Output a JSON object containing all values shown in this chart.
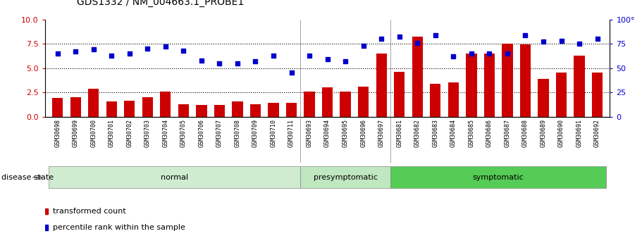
{
  "title": "GDS1332 / NM_004663.1_PROBE1",
  "samples": [
    "GSM30698",
    "GSM30699",
    "GSM30700",
    "GSM30701",
    "GSM30702",
    "GSM30703",
    "GSM30704",
    "GSM30705",
    "GSM30706",
    "GSM30707",
    "GSM30708",
    "GSM30709",
    "GSM30710",
    "GSM30711",
    "GSM30693",
    "GSM30694",
    "GSM30695",
    "GSM30696",
    "GSM30697",
    "GSM30681",
    "GSM30682",
    "GSM30683",
    "GSM30684",
    "GSM30685",
    "GSM30686",
    "GSM30687",
    "GSM30688",
    "GSM30689",
    "GSM30690",
    "GSM30691",
    "GSM30692"
  ],
  "bar_values": [
    1.9,
    2.0,
    2.9,
    1.6,
    1.65,
    2.0,
    2.55,
    1.3,
    1.2,
    1.2,
    1.6,
    1.3,
    1.4,
    1.4,
    2.55,
    3.0,
    2.55,
    3.1,
    6.5,
    4.6,
    8.2,
    3.4,
    3.5,
    6.5,
    6.5,
    7.5,
    7.4,
    3.9,
    4.5,
    6.3,
    4.5
  ],
  "dot_values": [
    65,
    67,
    69,
    63,
    65,
    70,
    72,
    68,
    58,
    55,
    55,
    57,
    63,
    45,
    63,
    59,
    57,
    73,
    80,
    82,
    76,
    84,
    62,
    65,
    65,
    65,
    84,
    77,
    78,
    75,
    80
  ],
  "group_labels": [
    "normal",
    "presymptomatic",
    "symptomatic"
  ],
  "group_ranges": [
    [
      0,
      14
    ],
    [
      14,
      19
    ],
    [
      19,
      31
    ]
  ],
  "group_colors_light": [
    "#d8f0d8",
    "#d8f0d8",
    "#66cc66"
  ],
  "bar_color": "#cc0000",
  "dot_color": "#0000cc",
  "ylim_left": [
    0,
    10
  ],
  "ylim_right": [
    0,
    100
  ],
  "yticks_left": [
    0,
    2.5,
    5.0,
    7.5,
    10
  ],
  "yticks_right": [
    0,
    25,
    50,
    75,
    100
  ],
  "hlines": [
    2.5,
    5.0,
    7.5
  ],
  "legend_bar_label": "transformed count",
  "legend_dot_label": "percentile rank within the sample",
  "disease_state_label": "disease state"
}
